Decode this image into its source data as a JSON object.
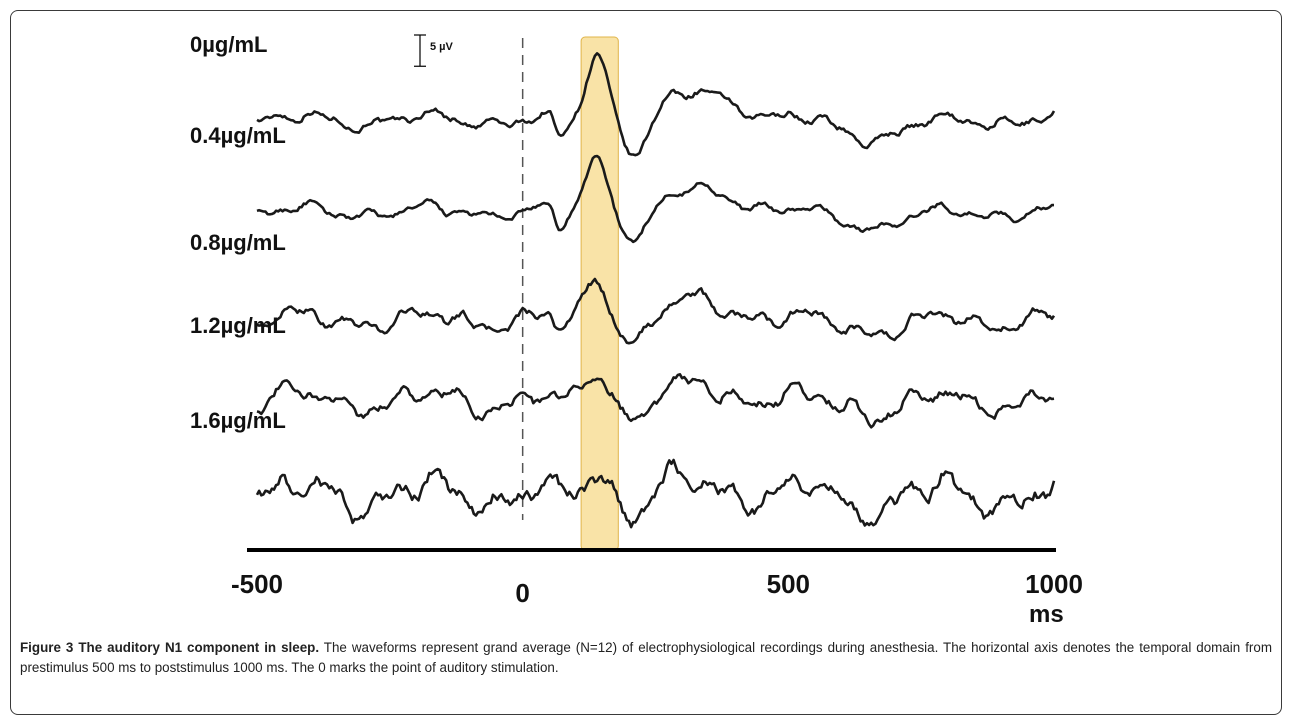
{
  "figure": {
    "caption_title": "Figure 3 The auditory N1 component in sleep.",
    "caption_text": " The waveforms represent grand average (N=12) of electrophysiological recordings during anesthesia. The horizontal axis denotes the temporal domain from prestimulus 500 ms to poststimulus 1000 ms. The 0 marks the point of auditory stimulation."
  },
  "colors": {
    "trace": "#1a1a1a",
    "highlight_fill": "#f7d98a",
    "highlight_stroke": "#e0b44a",
    "axis": "#000000"
  },
  "chart_data": {
    "type": "line",
    "xlim": [
      -500,
      1000
    ],
    "xticks": [
      -500,
      0,
      500,
      1000
    ],
    "tick_labels": [
      "-500",
      "0",
      "500",
      "1000"
    ],
    "x_unit": "ms",
    "scale_bar": {
      "label": "5 µV",
      "value": 5
    },
    "stimulus_onset": 0,
    "highlight_window": [
      110,
      180
    ],
    "series": [
      {
        "name": "0µg/mL",
        "n1_amplitude": 5.5,
        "noise": 0.5
      },
      {
        "name": "0.4µg/mL",
        "n1_amplitude": 4.6,
        "noise": 0.45
      },
      {
        "name": "0.8µg/mL",
        "n1_amplitude": 3.6,
        "noise": 0.65
      },
      {
        "name": "1.2µg/mL",
        "n1_amplitude": 2.6,
        "noise": 0.8
      },
      {
        "name": "1.6µg/mL",
        "n1_amplitude": 2.0,
        "noise": 1.15
      }
    ]
  }
}
